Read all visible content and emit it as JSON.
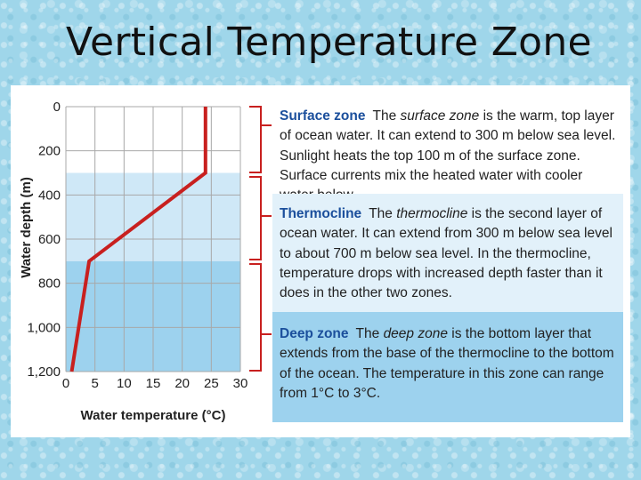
{
  "page": {
    "title": "Vertical Temperature Zone"
  },
  "chart_data": {
    "type": "line",
    "xlabel": "Water temperature (°C)",
    "ylabel": "Water depth (m)",
    "xlim": [
      0,
      30
    ],
    "ylim": [
      0,
      1200
    ],
    "y_inverted": true,
    "x_ticks": [
      "0",
      "5",
      "10",
      "15",
      "20",
      "25",
      "30"
    ],
    "x_tick_values": [
      0,
      5,
      10,
      15,
      20,
      25,
      30
    ],
    "y_ticks": [
      "0",
      "200",
      "400",
      "600",
      "800",
      "1,000",
      "1,200"
    ],
    "y_tick_values": [
      0,
      200,
      400,
      600,
      800,
      1000,
      1200
    ],
    "grid": true,
    "line_color": "#c8201f",
    "series": [
      {
        "x": [
          24,
          24,
          4,
          1
        ],
        "y": [
          0,
          300,
          700,
          1200
        ]
      }
    ],
    "zones": [
      {
        "from": 0,
        "to": 300,
        "color": "#ffffff"
      },
      {
        "from": 300,
        "to": 700,
        "color": "#cfe8f7"
      },
      {
        "from": 700,
        "to": 1200,
        "color": "#9dd2ee"
      }
    ]
  },
  "zones": {
    "surface": {
      "heading": "Surface zone",
      "pre": "The ",
      "term": "surface zone",
      "post": " is the warm, top layer of ocean water. It can extend to 300 m below sea level. Sunlight heats the top 100 m of the surface zone. Surface currents mix the heated water with cooler water below."
    },
    "thermocline": {
      "heading": "Thermocline",
      "pre": "The ",
      "term": "thermocline",
      "post": " is the second layer of ocean water. It can extend from 300 m below sea level to about 700 m below sea level. In the thermocline, temperature drops with increased depth faster than it does in the other two zones."
    },
    "deep": {
      "heading": "Deep zone",
      "pre": "The ",
      "term": "deep zone",
      "post": " is the bottom layer that extends from the base of the thermocline to the bottom of the ocean. The temperature in this zone can range from 1°C to 3°C."
    }
  },
  "colors": {
    "accent_heading": "#1b4f9c",
    "bracket": "#c8201f"
  }
}
